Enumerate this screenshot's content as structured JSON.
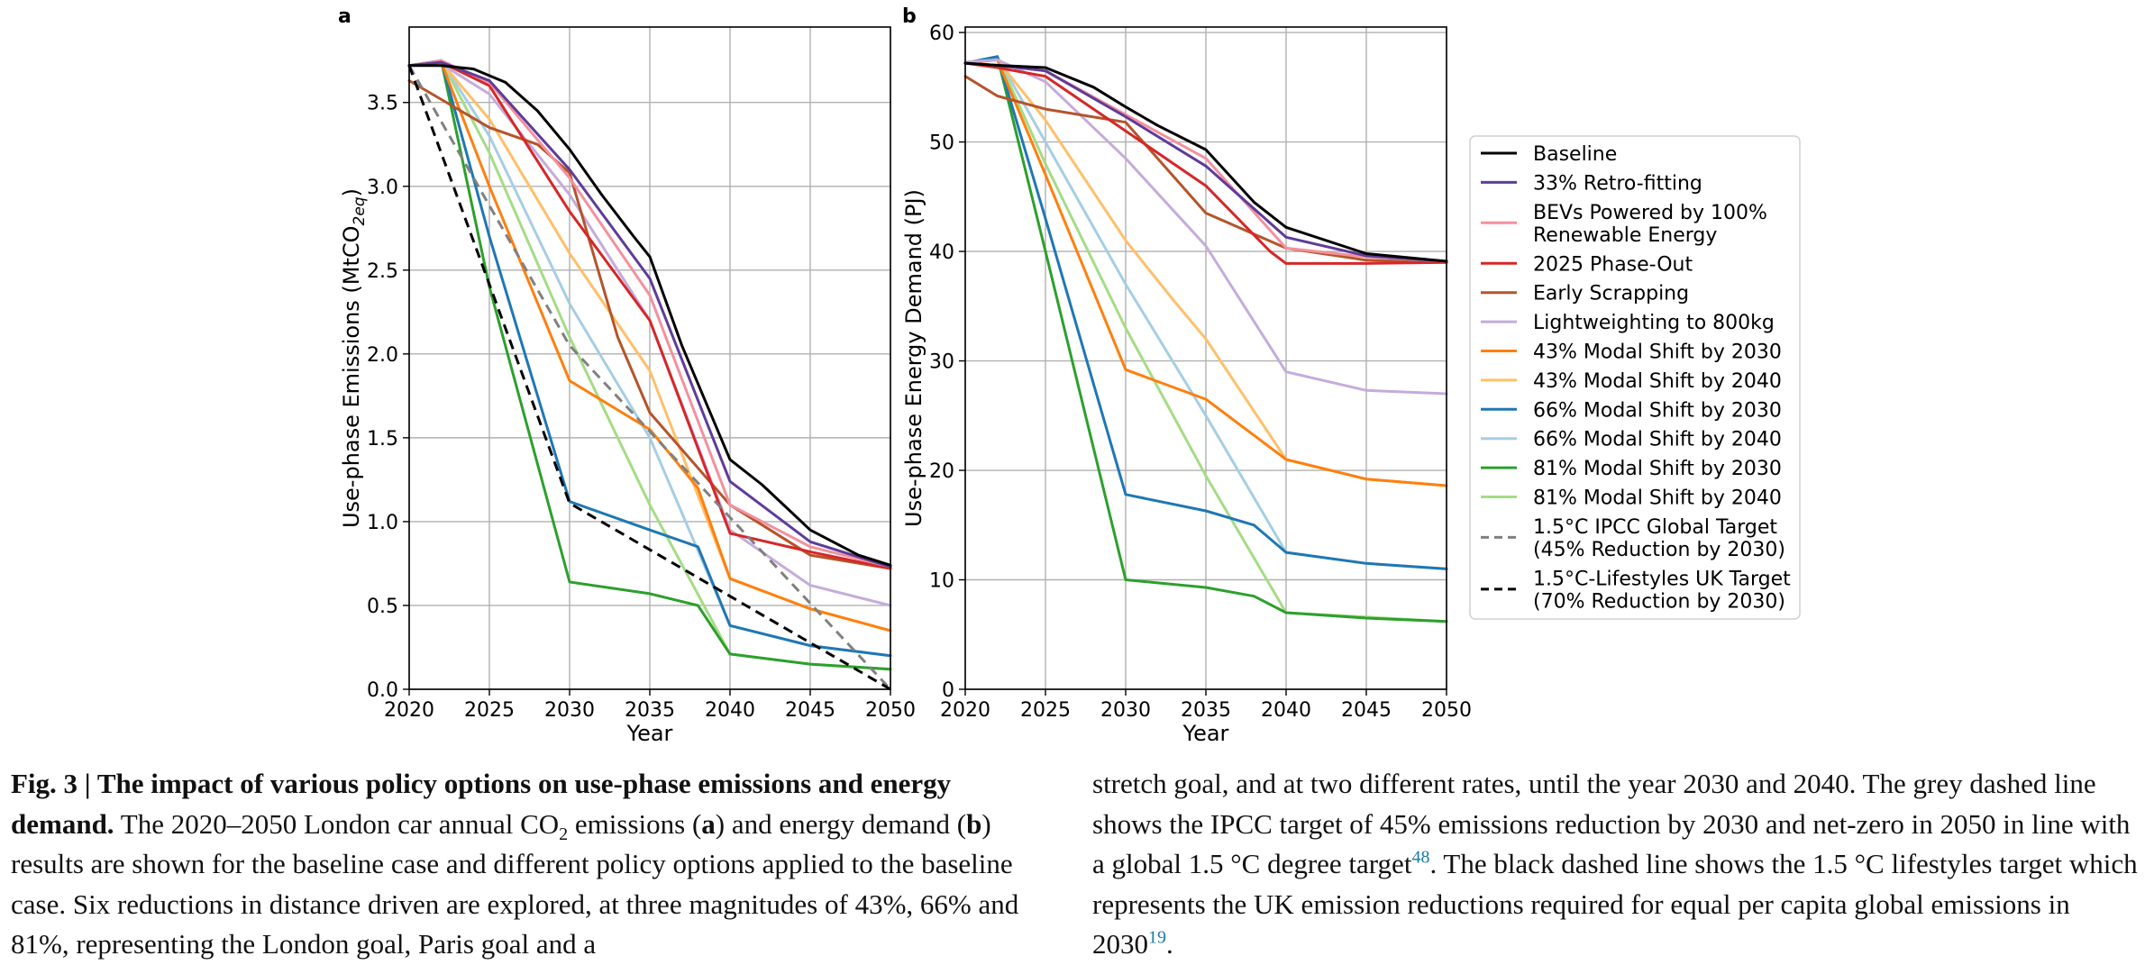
{
  "colors": {
    "Baseline": "#000000",
    "33% Retro-fitting": "#5e3c99",
    "BEVs Powered by 100% Renewable Energy": "#f4909e",
    "2025 Phase-Out": "#d62728",
    "Early Scrapping": "#b5542a",
    "Lightweighting to 800kg": "#c5abdb",
    "43% Modal Shift by 2030": "#ff7f0e",
    "43% Modal Shift by 2040": "#ffbf69",
    "66% Modal Shift by 2030": "#1f77b4",
    "66% Modal Shift by 2040": "#a6cee3",
    "81% Modal Shift by 2030": "#2ca02c",
    "81% Modal Shift by 2040": "#a5dc86",
    "IPCC": "#808080",
    "Lifestyles": "#000000"
  },
  "chart_data": [
    {
      "type": "line",
      "panel_label": "a",
      "xlabel": "Year",
      "ylabel": "Use-phase Emissions (MtCO2eq)",
      "ylabel_parts": {
        "main": "Use-phase Emissions (MtCO",
        "sub": "2eq",
        "end": ")"
      },
      "xlim": [
        2020,
        2050
      ],
      "ylim": [
        0,
        3.95
      ],
      "xticks": [
        2020,
        2025,
        2030,
        2035,
        2040,
        2045,
        2050
      ],
      "yticks": [
        0.0,
        0.5,
        1.0,
        1.5,
        2.0,
        2.5,
        3.0,
        3.5
      ],
      "ytick_labels": [
        "0.0",
        "0.5",
        "1.0",
        "1.5",
        "2.0",
        "2.5",
        "3.0",
        "3.5"
      ],
      "grid": true,
      "series": [
        {
          "name": "81% Modal Shift by 2040",
          "x": [
            2020,
            2022,
            2025,
            2030,
            2035,
            2040,
            2045,
            2050
          ],
          "y": [
            3.72,
            3.75,
            3.2,
            2.1,
            1.1,
            0.21,
            0.15,
            0.12
          ]
        },
        {
          "name": "81% Modal Shift by 2030",
          "x": [
            2020,
            2022,
            2025,
            2030,
            2035,
            2038,
            2040,
            2045,
            2050
          ],
          "y": [
            3.72,
            3.75,
            2.4,
            0.64,
            0.57,
            0.5,
            0.21,
            0.15,
            0.12
          ]
        },
        {
          "name": "66% Modal Shift by 2040",
          "x": [
            2020,
            2022,
            2025,
            2030,
            2035,
            2040,
            2045,
            2050
          ],
          "y": [
            3.72,
            3.75,
            3.3,
            2.3,
            1.5,
            0.38,
            0.26,
            0.2
          ]
        },
        {
          "name": "66% Modal Shift by 2030",
          "x": [
            2020,
            2022,
            2025,
            2030,
            2035,
            2038,
            2040,
            2045,
            2050
          ],
          "y": [
            3.72,
            3.75,
            2.7,
            1.12,
            0.95,
            0.85,
            0.38,
            0.26,
            0.2
          ]
        },
        {
          "name": "43% Modal Shift by 2040",
          "x": [
            2020,
            2022,
            2025,
            2030,
            2035,
            2040,
            2045,
            2050
          ],
          "y": [
            3.72,
            3.74,
            3.4,
            2.6,
            1.9,
            0.66,
            0.48,
            0.35
          ]
        },
        {
          "name": "43% Modal Shift by 2030",
          "x": [
            2020,
            2022,
            2025,
            2030,
            2035,
            2038,
            2040,
            2045,
            2050
          ],
          "y": [
            3.72,
            3.74,
            3.0,
            1.84,
            1.55,
            1.2,
            0.66,
            0.48,
            0.35
          ]
        },
        {
          "name": "Lightweighting to 800kg",
          "x": [
            2020,
            2022,
            2025,
            2030,
            2035,
            2040,
            2045,
            2050
          ],
          "y": [
            3.72,
            3.73,
            3.55,
            2.95,
            2.2,
            0.95,
            0.62,
            0.5
          ]
        },
        {
          "name": "Early Scrapping",
          "x": [
            2020,
            2025,
            2028,
            2030,
            2033,
            2035,
            2040,
            2045,
            2050
          ],
          "y": [
            3.63,
            3.35,
            3.25,
            3.08,
            2.1,
            1.65,
            1.1,
            0.8,
            0.72
          ]
        },
        {
          "name": "2025 Phase-Out",
          "x": [
            2020,
            2022,
            2025,
            2030,
            2035,
            2040,
            2045,
            2050
          ],
          "y": [
            3.72,
            3.74,
            3.6,
            2.85,
            2.2,
            0.93,
            0.82,
            0.72
          ]
        },
        {
          "name": "BEVs Powered by 100% Renewable Energy",
          "x": [
            2020,
            2022,
            2025,
            2030,
            2035,
            2040,
            2045,
            2050
          ],
          "y": [
            3.72,
            3.75,
            3.62,
            3.05,
            2.35,
            1.1,
            0.85,
            0.73
          ]
        },
        {
          "name": "33% Retro-fitting",
          "x": [
            2020,
            2022,
            2025,
            2030,
            2035,
            2040,
            2045,
            2050
          ],
          "y": [
            3.72,
            3.74,
            3.63,
            3.1,
            2.45,
            1.24,
            0.88,
            0.73
          ]
        },
        {
          "name": "Baseline",
          "x": [
            2020,
            2022,
            2024,
            2026,
            2028,
            2030,
            2032,
            2034,
            2035,
            2037,
            2040,
            2042,
            2045,
            2048,
            2050
          ],
          "y": [
            3.72,
            3.72,
            3.7,
            3.62,
            3.45,
            3.22,
            2.95,
            2.7,
            2.58,
            2.05,
            1.37,
            1.22,
            0.95,
            0.8,
            0.74
          ]
        },
        {
          "name": "1.5°C IPCC Global Target",
          "dashed": true,
          "x": [
            2020,
            2030,
            2050
          ],
          "y": [
            3.72,
            2.05,
            0.0
          ]
        },
        {
          "name": "1.5°C-Lifestyles UK Target",
          "dashed": true,
          "x": [
            2020,
            2030,
            2050
          ],
          "y": [
            3.72,
            1.11,
            0.0
          ]
        }
      ]
    },
    {
      "type": "line",
      "panel_label": "b",
      "xlabel": "Year",
      "ylabel": "Use-phase Energy Demand (PJ)",
      "xlim": [
        2020,
        2050
      ],
      "ylim": [
        0,
        60.5
      ],
      "xticks": [
        2020,
        2025,
        2030,
        2035,
        2040,
        2045,
        2050
      ],
      "yticks": [
        0,
        10,
        20,
        30,
        40,
        50,
        60
      ],
      "ytick_labels": [
        "0",
        "10",
        "20",
        "30",
        "40",
        "50",
        "60"
      ],
      "grid": true,
      "series": [
        {
          "name": "81% Modal Shift by 2040",
          "x": [
            2020,
            2022,
            2025,
            2030,
            2035,
            2040,
            2045,
            2050
          ],
          "y": [
            57.2,
            57.8,
            48.0,
            33.0,
            19.5,
            7.0,
            6.6,
            6.2
          ]
        },
        {
          "name": "81% Modal Shift by 2030",
          "x": [
            2020,
            2022,
            2025,
            2030,
            2035,
            2038,
            2040,
            2045,
            2050
          ],
          "y": [
            57.2,
            57.8,
            40.0,
            10.0,
            9.3,
            8.5,
            7.0,
            6.5,
            6.2
          ]
        },
        {
          "name": "66% Modal Shift by 2040",
          "x": [
            2020,
            2022,
            2025,
            2030,
            2035,
            2040,
            2045,
            2050
          ],
          "y": [
            57.2,
            57.8,
            50.0,
            37.0,
            25.0,
            12.5,
            11.5,
            11.0
          ]
        },
        {
          "name": "66% Modal Shift by 2030",
          "x": [
            2020,
            2022,
            2025,
            2030,
            2035,
            2038,
            2040,
            2045,
            2050
          ],
          "y": [
            57.2,
            57.8,
            43.0,
            17.8,
            16.3,
            15.0,
            12.5,
            11.5,
            11.0
          ]
        },
        {
          "name": "43% Modal Shift by 2040",
          "x": [
            2020,
            2022,
            2025,
            2030,
            2033,
            2035,
            2040,
            2045,
            2050
          ],
          "y": [
            57.2,
            57.5,
            52.0,
            41.0,
            35.5,
            32.0,
            21.0,
            19.2,
            18.6
          ]
        },
        {
          "name": "43% Modal Shift by 2030",
          "x": [
            2020,
            2022,
            2025,
            2030,
            2035,
            2040,
            2045,
            2050
          ],
          "y": [
            57.2,
            57.5,
            47.0,
            29.2,
            26.5,
            21.0,
            19.2,
            18.6
          ]
        },
        {
          "name": "Lightweighting to 800kg",
          "x": [
            2020,
            2022,
            2025,
            2030,
            2035,
            2040,
            2045,
            2050
          ],
          "y": [
            57.3,
            57.5,
            55.5,
            48.5,
            40.5,
            29.0,
            27.3,
            27.0
          ]
        },
        {
          "name": "Early Scrapping",
          "x": [
            2020,
            2022,
            2025,
            2030,
            2035,
            2040,
            2045,
            2050
          ],
          "y": [
            56.0,
            54.2,
            53.0,
            51.8,
            43.5,
            40.3,
            39.2,
            39.0
          ]
        },
        {
          "name": "2025 Phase-Out",
          "x": [
            2020,
            2022,
            2025,
            2030,
            2035,
            2039,
            2040,
            2045,
            2050
          ],
          "y": [
            57.2,
            56.8,
            56.0,
            51.0,
            46.0,
            40.0,
            38.9,
            38.9,
            39.0
          ]
        },
        {
          "name": "BEVs Powered by 100% Renewable Energy",
          "x": [
            2020,
            2022,
            2025,
            2030,
            2035,
            2040,
            2045,
            2050
          ],
          "y": [
            57.2,
            57.0,
            56.5,
            52.5,
            48.5,
            40.3,
            39.5,
            39.1
          ]
        },
        {
          "name": "33% Retro-fitting",
          "x": [
            2020,
            2022,
            2025,
            2030,
            2035,
            2040,
            2045,
            2050
          ],
          "y": [
            57.2,
            57.0,
            56.5,
            52.3,
            47.8,
            41.3,
            39.6,
            39.1
          ]
        },
        {
          "name": "Baseline",
          "x": [
            2020,
            2022,
            2025,
            2028,
            2030,
            2032,
            2035,
            2038,
            2040,
            2045,
            2050
          ],
          "y": [
            57.2,
            57.0,
            56.8,
            55.0,
            53.2,
            51.5,
            49.3,
            44.5,
            42.2,
            39.8,
            39.1
          ]
        }
      ]
    }
  ],
  "legend": {
    "placement": "right of panel b",
    "entries": [
      {
        "series": "Baseline",
        "lines": [
          "Baseline"
        ]
      },
      {
        "series": "33% Retro-fitting",
        "lines": [
          "33% Retro-fitting"
        ]
      },
      {
        "series": "BEVs Powered by 100% Renewable Energy",
        "lines": [
          "BEVs Powered by 100%",
          "Renewable Energy"
        ]
      },
      {
        "series": "2025 Phase-Out",
        "lines": [
          "2025 Phase-Out"
        ]
      },
      {
        "series": "Early Scrapping",
        "lines": [
          "Early Scrapping"
        ]
      },
      {
        "series": "Lightweighting to 800kg",
        "lines": [
          "Lightweighting to 800kg"
        ]
      },
      {
        "series": "43% Modal Shift by 2030",
        "lines": [
          "43% Modal Shift by 2030"
        ]
      },
      {
        "series": "43% Modal Shift by 2040",
        "lines": [
          "43% Modal Shift by 2040"
        ]
      },
      {
        "series": "66% Modal Shift by 2030",
        "lines": [
          "66% Modal Shift by 2030"
        ]
      },
      {
        "series": "66% Modal Shift by 2040",
        "lines": [
          "66% Modal Shift by 2040"
        ]
      },
      {
        "series": "81% Modal Shift by 2030",
        "lines": [
          "81% Modal Shift by 2030"
        ]
      },
      {
        "series": "81% Modal Shift by 2040",
        "lines": [
          "81% Modal Shift by 2040"
        ]
      },
      {
        "series": "1.5°C IPCC Global Target",
        "color_key": "IPCC",
        "dashed": true,
        "lines": [
          "1.5°C IPCC Global Target",
          "(45% Reduction by 2030)"
        ]
      },
      {
        "series": "1.5°C-Lifestyles UK Target",
        "color_key": "Lifestyles",
        "dashed": true,
        "lines": [
          "1.5°C-Lifestyles UK Target",
          "(70% Reduction by 2030)"
        ]
      }
    ]
  },
  "caption": {
    "fig_label": "Fig. 3 | The impact of various policy options on use-phase emissions and energy demand.",
    "t1": " The 2020–2050 London car annual CO",
    "t1_sub": "2",
    "t2": " emissions (",
    "a": "a",
    "t3": ") and energy demand (",
    "b": "b",
    "t4": ") results are shown for the baseline case and different policy options applied to the baseline case. Six reductions in distance driven are explored, at three magnitudes of 43%, 66% and 81%, representing the London goal, Paris goal and a",
    "right1": "stretch goal, and at two different rates, until the year 2030 and 2040. The grey dashed line shows the IPCC target of 45% emissions reduction by 2030 and net-zero in 2050 in line with a global 1.5 °C degree target",
    "ref1": "48",
    "right2": ". The black dashed line shows the 1.5 °C lifestyles target which represents the UK emission reductions required for equal per capita global emissions in 2030",
    "ref2": "19",
    "right3": "."
  }
}
